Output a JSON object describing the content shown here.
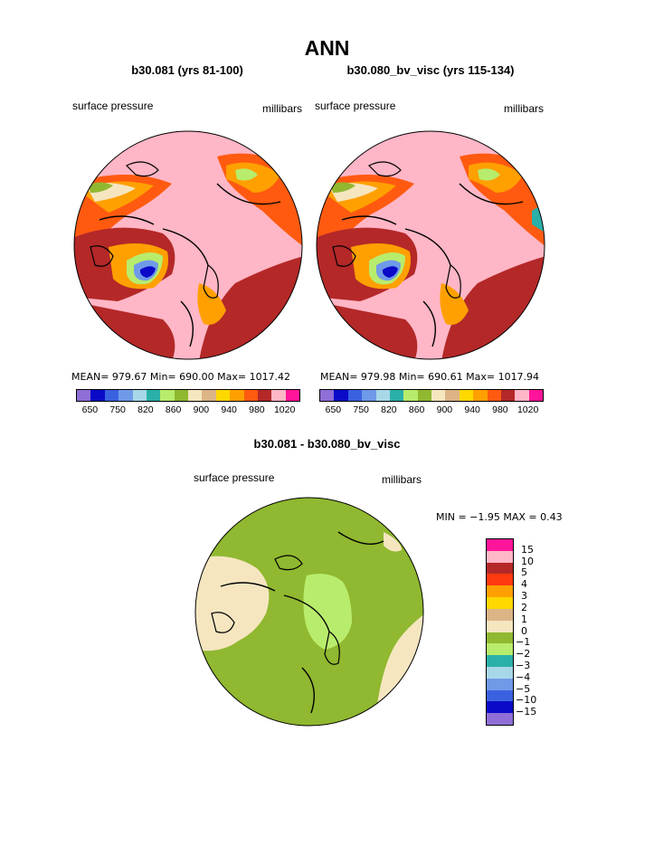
{
  "title": "ANN",
  "panels": [
    {
      "subtitle": "b30.081 (yrs 81-100)",
      "left_label": "surface pressure",
      "right_label": "millibars",
      "stats": "MEAN= 979.67   Min= 690.00   Max= 1017.42"
    },
    {
      "subtitle": "b30.080_bv_visc (yrs 115-134)",
      "left_label": "surface pressure",
      "right_label": "millibars",
      "stats": "MEAN= 979.98   Min= 690.61   Max= 1017.94"
    }
  ],
  "colorbar_top": {
    "colors": [
      "#8f6fd6",
      "#0a0ac8",
      "#3a62e0",
      "#6f9ae8",
      "#a8d8e8",
      "#2ab0a8",
      "#b8ec6c",
      "#90b830",
      "#f5e6c0",
      "#dcb486",
      "#ffd800",
      "#ffa000",
      "#ff5a10",
      "#b42828",
      "#ffb6c6",
      "#ff149a"
    ],
    "tick_labels": [
      "650",
      "750",
      "820",
      "860",
      "900",
      "940",
      "980",
      "1020"
    ]
  },
  "diff": {
    "subtitle": "b30.081 - b30.080_bv_visc",
    "left_label": "surface pressure",
    "right_label": "millibars",
    "stats": "MIN =   −1.95  MAX =    0.43",
    "colorbar": {
      "colors": [
        "#ff149a",
        "#ffb6c6",
        "#b42828",
        "#ff3a10",
        "#ffa000",
        "#ffd800",
        "#dcb486",
        "#f5e6c0",
        "#90b830",
        "#b8ec6c",
        "#2ab0a8",
        "#a8d8e8",
        "#6f9ae8",
        "#3a62e0",
        "#0a0ac8",
        "#8f6fd6"
      ],
      "labels": [
        "15",
        "10",
        "5",
        "4",
        "3",
        "2",
        "1",
        "0",
        "−1",
        "−2",
        "−3",
        "−4",
        "−5",
        "−10",
        "−15"
      ]
    }
  }
}
